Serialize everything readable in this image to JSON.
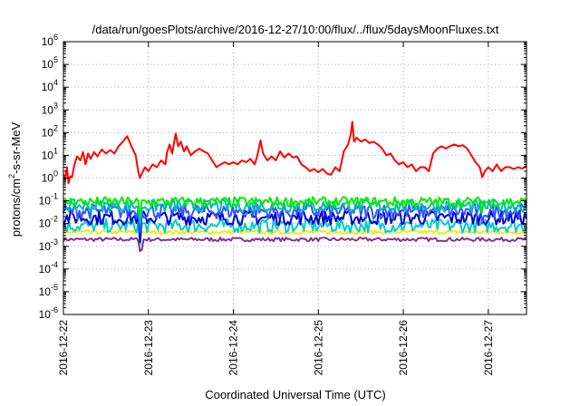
{
  "chart_data": {
    "type": "line",
    "title": "/data/run/goesPlots/archive/2016-12-27/10:00/flux/../flux/5daysMoonFluxes.txt",
    "xlabel": "Coordinated Universal Time (UTC)",
    "ylabel": {
      "base": "protons/cm",
      "sup": "2",
      "rest": "-s-sr-MeV"
    },
    "y_scale": "log",
    "ylim_exponents": [
      -6,
      6
    ],
    "y_tick_base": "10",
    "xlim_days": [
      0,
      5.45
    ],
    "x_ticks": [
      "2016-12-22",
      "2016-12-23",
      "2016-12-24",
      "2016-12-25",
      "2016-12-26",
      "2016-12-27"
    ],
    "grid": true,
    "legend": "none",
    "series": [
      {
        "color": "#ff0000",
        "points": [
          [
            0.0,
            1.5
          ],
          [
            0.02,
            0.9
          ],
          [
            0.04,
            3
          ],
          [
            0.06,
            0.6
          ],
          [
            0.08,
            1.2
          ],
          [
            0.1,
            1.1
          ],
          [
            0.13,
            4
          ],
          [
            0.16,
            9
          ],
          [
            0.2,
            6
          ],
          [
            0.23,
            14
          ],
          [
            0.26,
            4
          ],
          [
            0.29,
            12
          ],
          [
            0.32,
            7
          ],
          [
            0.36,
            14
          ],
          [
            0.4,
            9
          ],
          [
            0.45,
            18
          ],
          [
            0.5,
            12
          ],
          [
            0.55,
            17
          ],
          [
            0.6,
            12
          ],
          [
            0.65,
            25
          ],
          [
            0.7,
            40
          ],
          [
            0.75,
            70
          ],
          [
            0.8,
            25
          ],
          [
            0.85,
            10
          ],
          [
            0.88,
            2
          ],
          [
            0.9,
            1
          ],
          [
            0.92,
            1.5
          ],
          [
            0.96,
            3
          ],
          [
            1.0,
            2
          ],
          [
            1.05,
            4
          ],
          [
            1.1,
            3
          ],
          [
            1.15,
            6
          ],
          [
            1.2,
            4
          ],
          [
            1.22,
            14
          ],
          [
            1.25,
            30
          ],
          [
            1.28,
            12
          ],
          [
            1.32,
            90
          ],
          [
            1.35,
            25
          ],
          [
            1.38,
            40
          ],
          [
            1.42,
            15
          ],
          [
            1.45,
            25
          ],
          [
            1.5,
            10
          ],
          [
            1.55,
            15
          ],
          [
            1.6,
            20
          ],
          [
            1.65,
            15
          ],
          [
            1.7,
            12
          ],
          [
            1.75,
            6
          ],
          [
            1.8,
            3
          ],
          [
            1.85,
            4
          ],
          [
            1.9,
            5
          ],
          [
            1.95,
            4
          ],
          [
            2.0,
            5
          ],
          [
            2.05,
            4
          ],
          [
            2.1,
            6
          ],
          [
            2.15,
            5
          ],
          [
            2.2,
            7
          ],
          [
            2.25,
            4
          ],
          [
            2.28,
            9
          ],
          [
            2.32,
            45
          ],
          [
            2.35,
            12
          ],
          [
            2.4,
            6
          ],
          [
            2.45,
            9
          ],
          [
            2.5,
            6
          ],
          [
            2.55,
            15
          ],
          [
            2.6,
            8
          ],
          [
            2.65,
            12
          ],
          [
            2.7,
            8
          ],
          [
            2.75,
            9
          ],
          [
            2.8,
            4
          ],
          [
            2.85,
            3
          ],
          [
            2.9,
            2
          ],
          [
            2.95,
            2.5
          ],
          [
            3.0,
            1.8
          ],
          [
            3.05,
            2.5
          ],
          [
            3.1,
            1.6
          ],
          [
            3.15,
            1.4
          ],
          [
            3.2,
            3
          ],
          [
            3.25,
            2
          ],
          [
            3.3,
            15
          ],
          [
            3.35,
            30
          ],
          [
            3.38,
            80
          ],
          [
            3.4,
            300
          ],
          [
            3.42,
            40
          ],
          [
            3.45,
            60
          ],
          [
            3.5,
            40
          ],
          [
            3.55,
            50
          ],
          [
            3.6,
            35
          ],
          [
            3.65,
            40
          ],
          [
            3.7,
            30
          ],
          [
            3.75,
            20
          ],
          [
            3.8,
            10
          ],
          [
            3.85,
            12
          ],
          [
            3.9,
            6
          ],
          [
            3.95,
            4
          ],
          [
            4.0,
            5
          ],
          [
            4.05,
            3
          ],
          [
            4.1,
            4
          ],
          [
            4.15,
            2
          ],
          [
            4.2,
            3
          ],
          [
            4.25,
            3
          ],
          [
            4.3,
            2
          ],
          [
            4.35,
            12
          ],
          [
            4.4,
            20
          ],
          [
            4.45,
            25
          ],
          [
            4.5,
            20
          ],
          [
            4.55,
            25
          ],
          [
            4.6,
            30
          ],
          [
            4.65,
            25
          ],
          [
            4.7,
            28
          ],
          [
            4.75,
            20
          ],
          [
            4.8,
            10
          ],
          [
            4.85,
            5
          ],
          [
            4.9,
            3
          ],
          [
            4.93,
            1.1
          ],
          [
            4.96,
            2
          ],
          [
            5.0,
            3
          ],
          [
            5.05,
            2
          ],
          [
            5.1,
            4
          ],
          [
            5.15,
            2
          ],
          [
            5.2,
            3
          ],
          [
            5.25,
            3
          ],
          [
            5.3,
            2.5
          ],
          [
            5.35,
            3
          ],
          [
            5.4,
            2.6
          ],
          [
            5.45,
            3.5
          ]
        ]
      },
      {
        "color": "#00ee00",
        "band": true,
        "level": 0.09,
        "spread": 0.22,
        "dips": [
          [
            0.9,
            0.02
          ],
          [
            4.93,
            0.03
          ]
        ]
      },
      {
        "color": "#00bbbb",
        "band": true,
        "level": 0.06,
        "spread": 0.28,
        "dips": [
          [
            0.9,
            0.01
          ]
        ]
      },
      {
        "color": "#3355ff",
        "band": true,
        "level": 0.035,
        "spread": 0.34,
        "dips": [
          [
            0.9,
            0.004
          ],
          [
            4.93,
            0.01
          ]
        ]
      },
      {
        "color": "#0000cc",
        "band": true,
        "level": 0.018,
        "spread": 0.32,
        "dips": [
          [
            0.9,
            0.0015
          ]
        ]
      },
      {
        "color": "#00cccc",
        "band": true,
        "level": 0.008,
        "spread": 0.3,
        "dips": [
          [
            0.9,
            0.0012
          ]
        ]
      },
      {
        "color": "#eeee00",
        "band": true,
        "level": 0.0042,
        "spread": 0.08,
        "dips": []
      },
      {
        "color": "#883388",
        "band": true,
        "level": 0.002,
        "spread": 0.08,
        "dips": [
          [
            0.9,
            0.0006
          ],
          [
            0.92,
            0.0007
          ]
        ]
      }
    ]
  }
}
